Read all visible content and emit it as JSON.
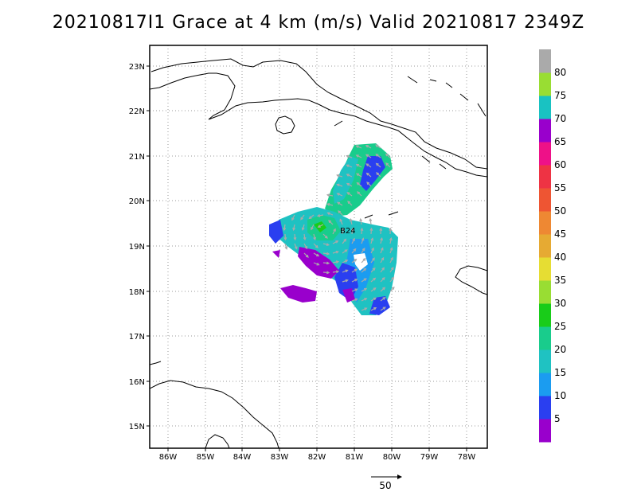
{
  "title": "20210817I1 Grace at 4 km (m/s) Valid 20210817 2349Z",
  "axes": {
    "lon_ticks": [
      "86W",
      "85W",
      "84W",
      "83W",
      "82W",
      "81W",
      "80W",
      "79W",
      "78W"
    ],
    "lat_ticks": [
      "23N",
      "22N",
      "21N",
      "20N",
      "19N",
      "18N",
      "17N",
      "16N",
      "15N"
    ]
  },
  "colorbar": {
    "labels": [
      "5",
      "10",
      "15",
      "20",
      "25",
      "30",
      "35",
      "40",
      "45",
      "50",
      "55",
      "60",
      "65",
      "70",
      "75",
      "80"
    ],
    "colors": [
      "#9900cc",
      "#2a3ff0",
      "#1b9cf0",
      "#1fc2c2",
      "#19cc8c",
      "#19cc19",
      "#99dd33",
      "#e6dd33",
      "#e6aa33",
      "#ee8833",
      "#ee5533",
      "#ee3344",
      "#ee1188",
      "#9900cc",
      "#19c2c2",
      "#99dd33",
      "#aaaaaa"
    ]
  },
  "center_marker": "B24",
  "reference_vector": {
    "label": "50"
  }
}
